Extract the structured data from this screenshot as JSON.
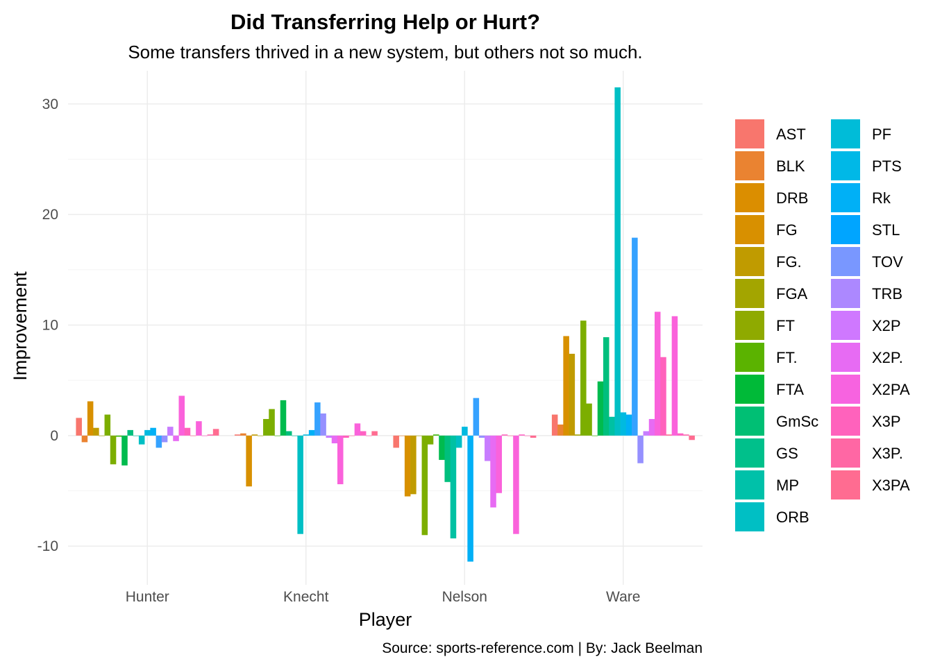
{
  "chart_data": {
    "type": "bar",
    "title": "Did Transferring Help or Hurt?",
    "subtitle": "Some transfers thrived in a new system, but others not so much.",
    "xlabel": "Player",
    "ylabel": "Improvement",
    "caption": "Source: sports-reference.com | By: Jack Beelman",
    "categories": [
      "Hunter",
      "Knecht",
      "Nelson",
      "Ware"
    ],
    "ylim": [
      -13.5,
      33
    ],
    "yticks": [
      -10,
      0,
      10,
      20,
      30
    ],
    "grid": true,
    "legend_position": "right",
    "series": [
      {
        "name": "AST",
        "color": "#F8766D",
        "values": [
          1.6,
          0.1,
          -1.1,
          1.9
        ]
      },
      {
        "name": "BLK",
        "color": "#EA8331",
        "values": [
          -0.6,
          0.2,
          0.0,
          1.0
        ]
      },
      {
        "name": "DRB",
        "color": "#D89000",
        "values": [
          3.1,
          -4.6,
          -5.5,
          9.0
        ]
      },
      {
        "name": "FG",
        "color": "#C09B00",
        "values": [
          0.7,
          0.1,
          -5.3,
          7.4
        ]
      },
      {
        "name": "FG.",
        "color": "#A3A500",
        "values": [
          0.0,
          0.0,
          0.0,
          0.1
        ]
      },
      {
        "name": "FGA",
        "color": "#7CAE00",
        "values": [
          1.9,
          1.5,
          -9.0,
          10.4
        ]
      },
      {
        "name": "FT",
        "color": "#7CAE00",
        "values": [
          -2.6,
          2.4,
          -0.8,
          2.9
        ]
      },
      {
        "name": "FT.",
        "color": "#39B600",
        "values": [
          -0.1,
          0.0,
          0.1,
          0.0
        ]
      },
      {
        "name": "FTA",
        "color": "#00BB4E",
        "values": [
          -2.7,
          3.2,
          -2.2,
          4.9
        ]
      },
      {
        "name": "GmSc",
        "color": "#00BF7D",
        "values": [
          0.5,
          0.4,
          -4.2,
          8.9
        ]
      },
      {
        "name": "GS",
        "color": "#00C1A3",
        "values": [
          0.0,
          0.0,
          -9.3,
          1.7
        ]
      },
      {
        "name": "MP",
        "color": "#00BFC4",
        "values": [
          -0.8,
          -8.9,
          -1.1,
          31.5
        ]
      },
      {
        "name": "ORB",
        "color": "#00BAE0",
        "values": [
          0.5,
          0.1,
          0.8,
          2.1
        ]
      },
      {
        "name": "PF",
        "color": "#00B0F6",
        "values": [
          0.7,
          0.5,
          -11.4,
          1.9
        ]
      },
      {
        "name": "PTS",
        "color": "#35A2FF",
        "values": [
          -1.1,
          3.0,
          3.4,
          17.9
        ]
      },
      {
        "name": "Rk",
        "color": "#9590FF",
        "values": [
          -0.6,
          2.0,
          -0.2,
          -2.5
        ]
      },
      {
        "name": "STL",
        "color": "#C77CFF",
        "values": [
          0.8,
          -0.2,
          -2.3,
          0.4
        ]
      },
      {
        "name": "TOV",
        "color": "#E76BF3",
        "values": [
          -0.5,
          -0.7,
          -6.5,
          1.5
        ]
      },
      {
        "name": "TRB",
        "color": "#FA62DB",
        "values": [
          3.6,
          -4.4,
          -5.2,
          11.2
        ]
      },
      {
        "name": "X2P",
        "color": "#FF62BC",
        "values": [
          0.7,
          -0.2,
          0.1,
          7.1
        ]
      },
      {
        "name": "X2P.",
        "color": "#FF6C91",
        "values": [
          0.0,
          0.0,
          0.0,
          0.1
        ]
      },
      {
        "name": "X2PA",
        "color": "#FA62DB",
        "values": [
          1.3,
          1.1,
          -8.9,
          10.8
        ]
      },
      {
        "name": "X3P",
        "color": "#FF61C3",
        "values": [
          0.0,
          0.4,
          0.1,
          0.2
        ]
      },
      {
        "name": "X3P.",
        "color": "#FF65AE",
        "values": [
          0.1,
          0.0,
          0.0,
          0.1
        ]
      },
      {
        "name": "X3PA",
        "color": "#FF6C91",
        "values": [
          0.6,
          0.4,
          -0.2,
          -0.4
        ]
      }
    ],
    "legend": [
      {
        "name": "AST",
        "color": "#F8766D"
      },
      {
        "name": "BLK",
        "color": "#EA8331"
      },
      {
        "name": "DRB",
        "color": "#DB8E00"
      },
      {
        "name": "FG",
        "color": "#D89000"
      },
      {
        "name": "FG.",
        "color": "#C09B00"
      },
      {
        "name": "FGA",
        "color": "#A3A500"
      },
      {
        "name": "FT",
        "color": "#8FAA00"
      },
      {
        "name": "FT.",
        "color": "#5BB300"
      },
      {
        "name": "FTA",
        "color": "#00BA38"
      },
      {
        "name": "GmSc",
        "color": "#00BF74"
      },
      {
        "name": "GS",
        "color": "#00C08B"
      },
      {
        "name": "MP",
        "color": "#00C1A9"
      },
      {
        "name": "ORB",
        "color": "#00BFC4"
      },
      {
        "name": "PF",
        "color": "#00BCD8"
      },
      {
        "name": "PTS",
        "color": "#00B8E7"
      },
      {
        "name": "Rk",
        "color": "#00B0F6"
      },
      {
        "name": "STL",
        "color": "#00A5FF"
      },
      {
        "name": "TOV",
        "color": "#7997FF"
      },
      {
        "name": "TRB",
        "color": "#AC88FF"
      },
      {
        "name": "X2P",
        "color": "#CF78FF"
      },
      {
        "name": "X2P.",
        "color": "#E76BF3"
      },
      {
        "name": "X2PA",
        "color": "#F763E0"
      },
      {
        "name": "X3P",
        "color": "#FF62BC"
      },
      {
        "name": "X3P.",
        "color": "#FF67A4"
      },
      {
        "name": "X3PA",
        "color": "#FF6C91"
      }
    ]
  }
}
